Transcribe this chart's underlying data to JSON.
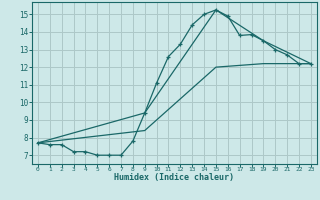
{
  "xlabel": "Humidex (Indice chaleur)",
  "background_color": "#cde8e8",
  "grid_color": "#adc8c8",
  "line_color": "#1a6868",
  "xlim": [
    -0.5,
    23.5
  ],
  "ylim": [
    6.5,
    15.7
  ],
  "xticks": [
    0,
    1,
    2,
    3,
    4,
    5,
    6,
    7,
    8,
    9,
    10,
    11,
    12,
    13,
    14,
    15,
    16,
    17,
    18,
    19,
    20,
    21,
    22,
    23
  ],
  "yticks": [
    7,
    8,
    9,
    10,
    11,
    12,
    13,
    14,
    15
  ],
  "line1_x": [
    0,
    1,
    2,
    3,
    4,
    5,
    6,
    7,
    8,
    9,
    10,
    11,
    12,
    13,
    14,
    15,
    16,
    17,
    18,
    19,
    20,
    21,
    22,
    23
  ],
  "line1_y": [
    7.7,
    7.6,
    7.6,
    7.2,
    7.2,
    7.0,
    7.0,
    7.0,
    7.8,
    9.4,
    11.1,
    12.6,
    13.3,
    14.4,
    15.0,
    15.25,
    14.9,
    13.8,
    13.85,
    13.5,
    13.0,
    12.7,
    12.2,
    12.2
  ],
  "line2_x": [
    0,
    9,
    15,
    19,
    23
  ],
  "line2_y": [
    7.7,
    9.4,
    15.25,
    13.5,
    12.2
  ],
  "line3_x": [
    0,
    9,
    15,
    19,
    23
  ],
  "line3_y": [
    7.7,
    8.4,
    12.0,
    12.2,
    12.2
  ]
}
